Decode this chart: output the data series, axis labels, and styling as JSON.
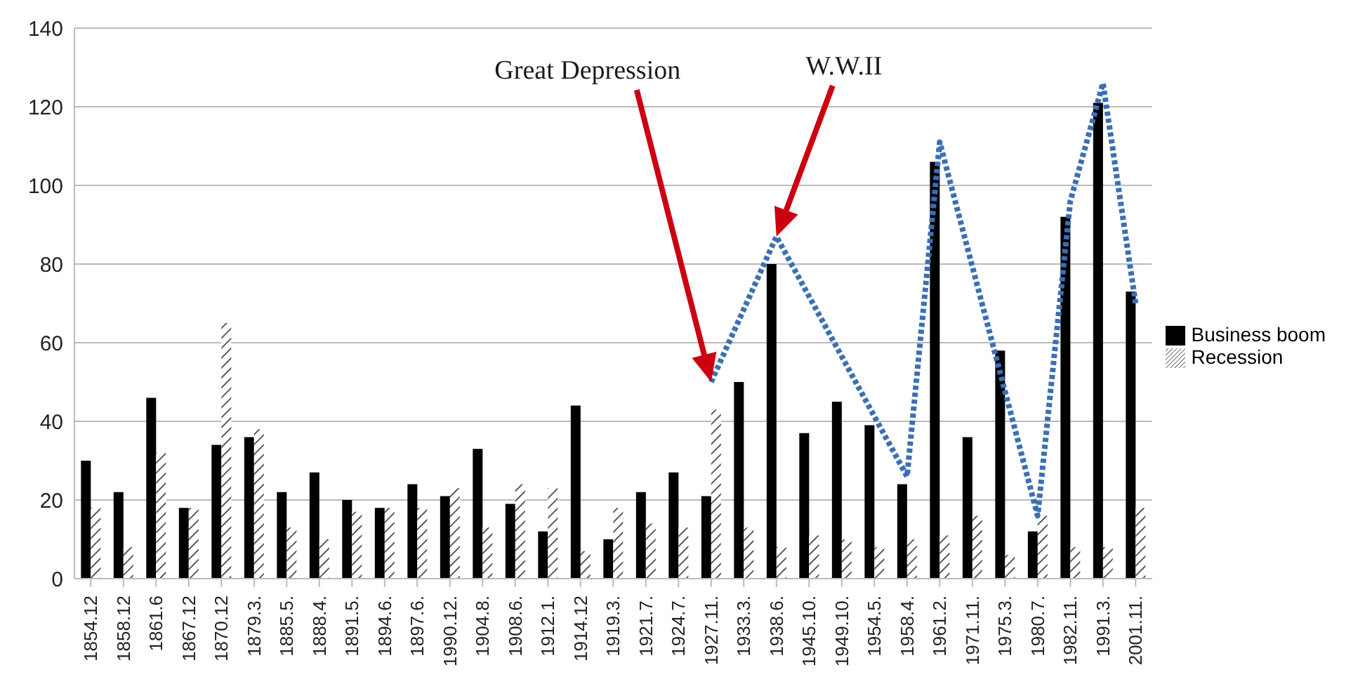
{
  "chart_data": {
    "type": "bar",
    "categories": [
      "1854.12",
      "1858.12",
      "1861.6",
      "1867.12",
      "1870.12",
      "1879.3.",
      "1885.5.",
      "1888.4.",
      "1891.5.",
      "1894.6.",
      "1897.6.",
      "1990.12.",
      "1904.8.",
      "1908.6.",
      "1912.1.",
      "1914.12",
      "1919.3.",
      "1921.7.",
      "1924.7.",
      "1927.11.",
      "1933.3.",
      "1938.6.",
      "1945.10.",
      "1949.10.",
      "1954.5.",
      "1958.4.",
      "1961.2.",
      "1971.11.",
      "1975.3.",
      "1980.7.",
      "1982.11.",
      "1991.3.",
      "2001.11."
    ],
    "series": [
      {
        "name": "Business boom",
        "color": "#000000",
        "values": [
          30,
          22,
          46,
          18,
          34,
          36,
          22,
          27,
          20,
          18,
          24,
          21,
          33,
          19,
          12,
          44,
          10,
          22,
          27,
          21,
          50,
          80,
          37,
          45,
          39,
          24,
          106,
          36,
          58,
          12,
          92,
          121,
          73
        ]
      },
      {
        "name": "Recession",
        "color": "#333333",
        "values": [
          18,
          8,
          32,
          18,
          65,
          38,
          13,
          10,
          17,
          18,
          18,
          23,
          13,
          24,
          23,
          7,
          18,
          14,
          13,
          43,
          13,
          8,
          11,
          10,
          8,
          10,
          11,
          16,
          6,
          16,
          8,
          8,
          18
        ]
      },
      {
        "type": "line",
        "color": "#3a6fb5",
        "line_style": "dotted",
        "marker": "none",
        "values": [
          null,
          null,
          null,
          null,
          null,
          null,
          null,
          null,
          null,
          null,
          null,
          null,
          null,
          null,
          null,
          null,
          null,
          null,
          null,
          50,
          null,
          87,
          null,
          null,
          null,
          26,
          111,
          null,
          null,
          16,
          96,
          126,
          70
        ]
      }
    ],
    "annotations": [
      "Great Depression",
      "W.W.II"
    ],
    "ylim": [
      0,
      140
    ],
    "yticks": [
      0,
      20,
      40,
      60,
      80,
      100,
      120,
      140
    ],
    "grid": "y",
    "legend": "right"
  }
}
